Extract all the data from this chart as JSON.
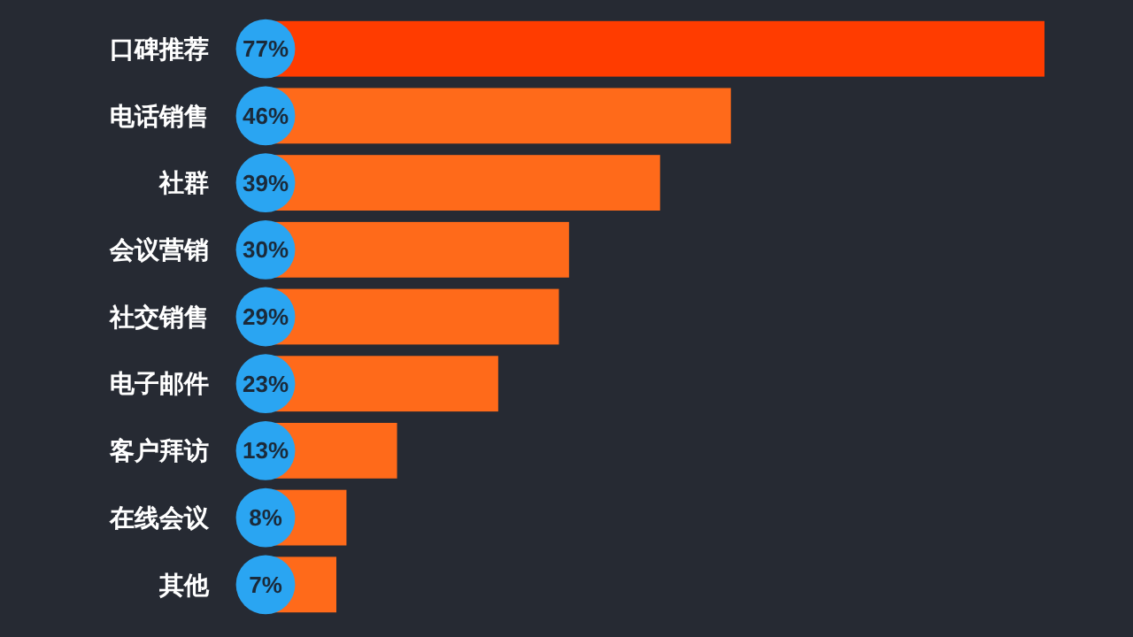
{
  "chart_data": {
    "type": "bar",
    "orientation": "horizontal",
    "categories": [
      "口碑推荐",
      "电话销售",
      "社群",
      "会议营销",
      "社交销售",
      "电子邮件",
      "客户拜访",
      "在线会议",
      "其他"
    ],
    "values": [
      77,
      46,
      39,
      30,
      29,
      23,
      13,
      8,
      7
    ],
    "colors": [
      "#ff3c00",
      "#ff6a1a",
      "#ff6a1a",
      "#ff6a1a",
      "#ff6a1a",
      "#ff6a1a",
      "#ff6a1a",
      "#ff6a1a",
      "#ff6a1a"
    ],
    "value_labels": [
      "77%",
      "46%",
      "39%",
      "30%",
      "29%",
      "23%",
      "13%",
      "8%",
      "7%"
    ]
  }
}
